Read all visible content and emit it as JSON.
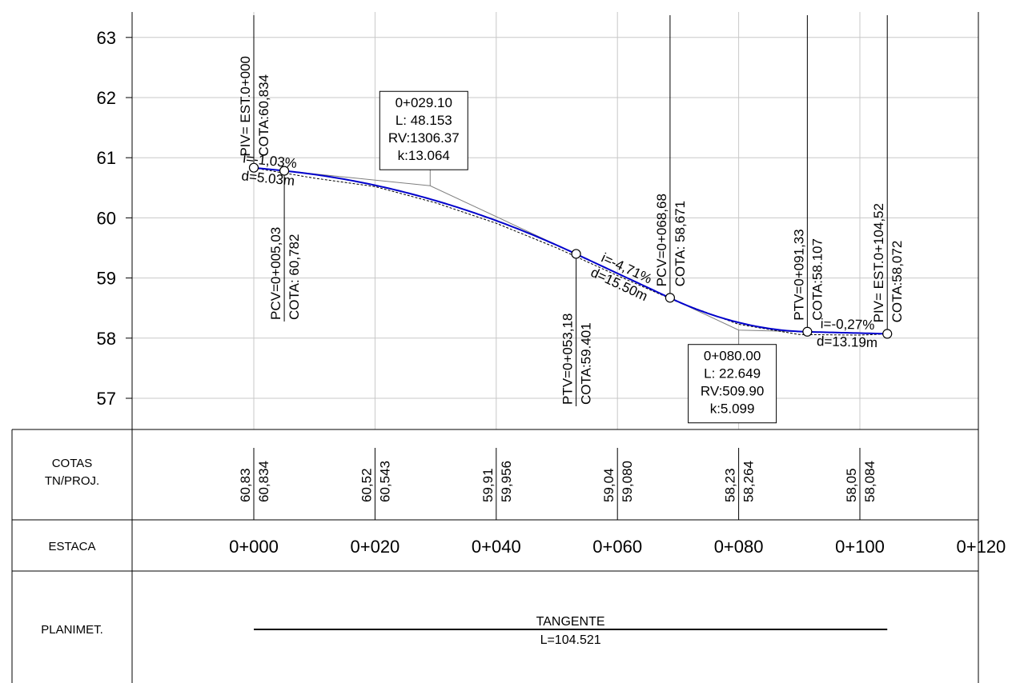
{
  "y_axis": {
    "ticks": [
      57,
      58,
      59,
      60,
      61,
      62,
      63
    ]
  },
  "x_axis": {
    "ticks": [
      {
        "station": 0,
        "label": "0+000"
      },
      {
        "station": 20,
        "label": "0+020"
      },
      {
        "station": 40,
        "label": "0+040"
      },
      {
        "station": 60,
        "label": "0+060"
      },
      {
        "station": 80,
        "label": "0+080"
      },
      {
        "station": 100,
        "label": "0+100"
      },
      {
        "station": 120,
        "label": "0+120"
      }
    ]
  },
  "profile": {
    "pivs": [
      {
        "station": 0,
        "elev": 60.834
      },
      {
        "station": 29.1,
        "elev": 60.534
      },
      {
        "station": 80.0,
        "elev": 58.134
      },
      {
        "station": 104.52,
        "elev": 58.072
      }
    ],
    "curves": [
      {
        "start": 5.03,
        "end": 53.18,
        "pvi": 29.1
      },
      {
        "start": 68.68,
        "end": 91.33,
        "pvi": 80.0
      }
    ],
    "terrain": [
      {
        "station": 0,
        "elev": 60.83
      },
      {
        "station": 10,
        "elev": 60.66
      },
      {
        "station": 20,
        "elev": 60.52
      },
      {
        "station": 30,
        "elev": 60.25
      },
      {
        "station": 40,
        "elev": 59.91
      },
      {
        "station": 50,
        "elev": 59.5
      },
      {
        "station": 60,
        "elev": 59.04
      },
      {
        "station": 70,
        "elev": 58.6
      },
      {
        "station": 80,
        "elev": 58.23
      },
      {
        "station": 90,
        "elev": 58.06
      },
      {
        "station": 100,
        "elev": 58.05
      },
      {
        "station": 104.52,
        "elev": 58.07
      }
    ],
    "key_points": [
      {
        "station": 0,
        "elev": 60.834,
        "line1": "PIV= EST.0+000",
        "line2": "COTA:60,834",
        "side": "above"
      },
      {
        "station": 5.03,
        "elev": 60.782,
        "line1": "PCV=0+005,03",
        "line2": "COTA: 60,782",
        "side": "below"
      },
      {
        "station": 53.18,
        "elev": 59.401,
        "line1": "PTV=0+053,18",
        "line2": "COTA:59.401",
        "side": "below"
      },
      {
        "station": 68.68,
        "elev": 58.671,
        "line1": "PCV=0+068,68",
        "line2": "COTA: 58,671",
        "side": "above"
      },
      {
        "station": 91.33,
        "elev": 58.107,
        "line1": "PTV=0+091,33",
        "line2": "COTA:58.107",
        "side": "above"
      },
      {
        "station": 104.52,
        "elev": 58.072,
        "line1": "PIV= EST.0+104,52",
        "line2": "COTA:58,072",
        "side": "above"
      }
    ],
    "grades": [
      {
        "from": 0,
        "to": 5.03,
        "grade": "i=-1,03%",
        "dist": "d=5.03m"
      },
      {
        "from": 53.18,
        "to": 68.68,
        "grade": "i=-4,71%",
        "dist": "d=15.50m"
      },
      {
        "from": 91.33,
        "to": 104.52,
        "grade": "i=-0,27%",
        "dist": "d=13.19m"
      }
    ],
    "curve_labels": [
      {
        "station": 29.1,
        "elev": 60.534,
        "lines": [
          "0+029.10",
          "L: 48.153",
          "RV:1306.37",
          "k:13.064"
        ],
        "placement": "above"
      },
      {
        "station": 80.0,
        "elev": 58.134,
        "lines": [
          "0+080.00",
          "L: 22.649",
          "RV:509.90",
          "k:5.099"
        ],
        "placement": "below"
      }
    ]
  },
  "bands": {
    "cotas": {
      "label_line1": "COTAS",
      "label_line2": "TN/PROJ.",
      "entries": [
        {
          "station": 0,
          "tn": "60,83",
          "proj": "60,834"
        },
        {
          "station": 20,
          "tn": "60,52",
          "proj": "60,543"
        },
        {
          "station": 40,
          "tn": "59,91",
          "proj": "59,956"
        },
        {
          "station": 60,
          "tn": "59,04",
          "proj": "59,080"
        },
        {
          "station": 80,
          "tn": "58,23",
          "proj": "58,264"
        },
        {
          "station": 100,
          "tn": "58,05",
          "proj": "58,084"
        }
      ]
    },
    "estaca": {
      "label": "ESTACA"
    },
    "planimet": {
      "label": "PLANIMET.",
      "segment": {
        "from": 0,
        "to": 104.52,
        "name": "TANGENTE",
        "length": "L=104.521"
      }
    }
  }
}
